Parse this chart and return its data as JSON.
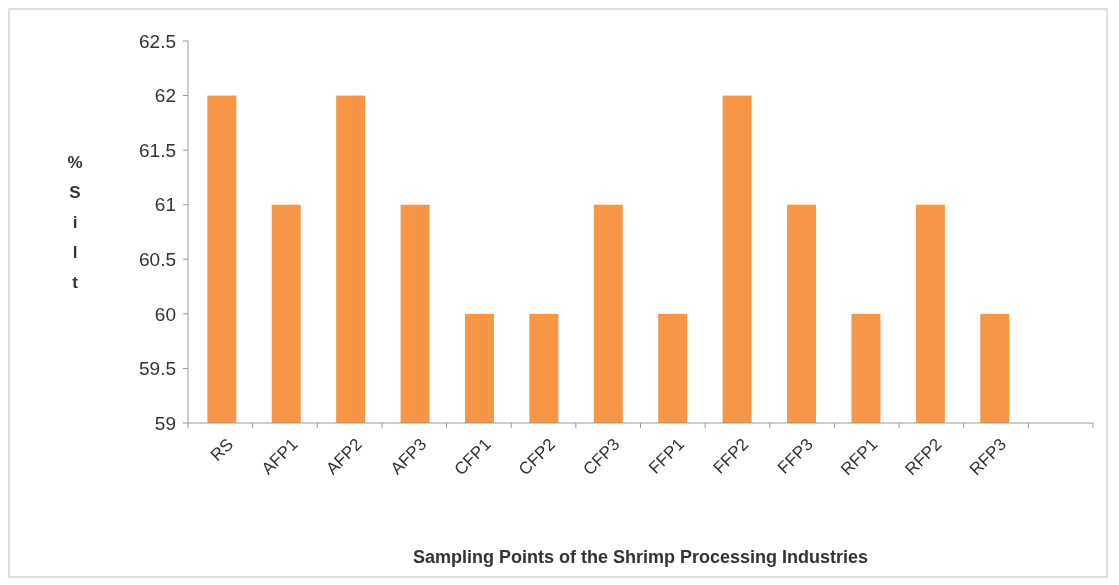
{
  "chart_data": {
    "type": "bar",
    "xlabel": "Sampling Points of the Shrimp Processing Industries",
    "ylabel": "% Silt",
    "categories": [
      "RS",
      "AFP1",
      "AFP2",
      "AFP3",
      "CFP1",
      "CFP2",
      "CFP3",
      "FFP1",
      "FFP2",
      "FFP3",
      "RFP1",
      "RFP2",
      "RFP3",
      null
    ],
    "values": [
      62,
      61,
      62,
      61,
      60,
      60,
      61,
      60,
      62,
      61,
      60,
      61,
      60,
      null
    ],
    "color": "#f79646",
    "ylim": [
      59,
      62.5
    ],
    "yticks": [
      59,
      59.5,
      60,
      60.5,
      61,
      61.5,
      62,
      62.5
    ],
    "grid": false
  }
}
